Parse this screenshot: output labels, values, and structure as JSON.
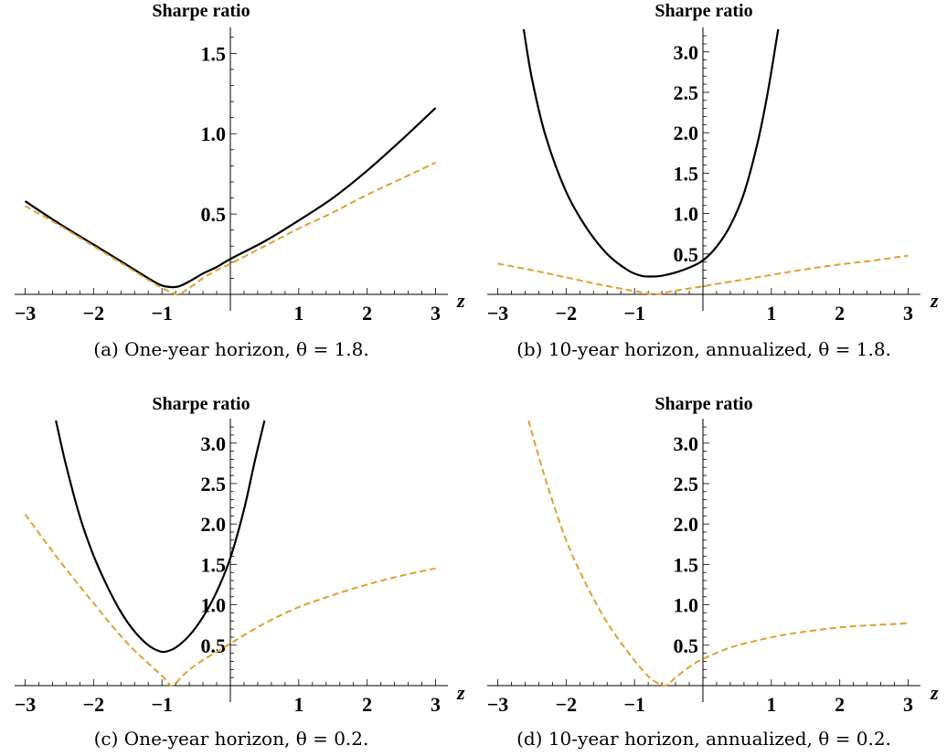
{
  "chart_data": [
    {
      "type": "line",
      "title": "Sharpe ratio",
      "xlabel": "z",
      "caption": "(a) One-year horizon, θ = 1.8.",
      "xlim": [
        -3.1,
        3.1
      ],
      "ylim": [
        0,
        1.65
      ],
      "xticks": [
        -3,
        -2,
        -1,
        1,
        2,
        3
      ],
      "xtick_labels": [
        "−3",
        "−2",
        "−1",
        "1",
        "2",
        "3"
      ],
      "yticks": [
        0.5,
        1.0,
        1.5
      ],
      "ytick_labels": [
        "0.5",
        "1.0",
        "1.5"
      ],
      "series": [
        {
          "color": "#000000",
          "style": "solid",
          "x": [
            -3,
            -2.5,
            -2,
            -1.5,
            -1.2,
            -1,
            -0.85,
            -0.75,
            -0.6,
            -0.4,
            -0.2,
            0,
            0.5,
            1,
            1.5,
            2,
            2.5,
            3
          ],
          "y": [
            0.58,
            0.44,
            0.31,
            0.18,
            0.1,
            0.055,
            0.045,
            0.05,
            0.08,
            0.13,
            0.17,
            0.22,
            0.33,
            0.46,
            0.6,
            0.77,
            0.96,
            1.16
          ]
        },
        {
          "color": "#E0A030",
          "style": "dashed",
          "x": [
            -3,
            -2.5,
            -2,
            -1.5,
            -1.2,
            -1,
            -0.85,
            -0.75,
            -0.6,
            -0.4,
            -0.2,
            0,
            0.5,
            1,
            1.5,
            2,
            2.5,
            3
          ],
          "y": [
            0.55,
            0.43,
            0.3,
            0.17,
            0.09,
            0.04,
            0.01,
            0.0,
            0.04,
            0.1,
            0.15,
            0.19,
            0.3,
            0.41,
            0.51,
            0.62,
            0.72,
            0.82
          ]
        }
      ]
    },
    {
      "type": "line",
      "title": "Sharpe ratio",
      "xlabel": "z",
      "caption": "(b) 10-year horizon, annualized, θ = 1.8.",
      "xlim": [
        -3.1,
        3.1
      ],
      "ylim": [
        0,
        3.28
      ],
      "xticks": [
        -3,
        -2,
        -1,
        1,
        2,
        3
      ],
      "xtick_labels": [
        "−3",
        "−2",
        "−1",
        "1",
        "2",
        "3"
      ],
      "yticks": [
        0.5,
        1.0,
        1.5,
        2.0,
        2.5,
        3.0
      ],
      "ytick_labels": [
        "0.5",
        "1.0",
        "1.5",
        "2.0",
        "2.5",
        "3.0"
      ],
      "series": [
        {
          "color": "#000000",
          "style": "solid",
          "x": [
            -2.62,
            -2.5,
            -2.3,
            -2,
            -1.7,
            -1.4,
            -1.1,
            -0.9,
            -0.75,
            -0.6,
            -0.4,
            -0.2,
            0,
            0.2,
            0.4,
            0.6,
            0.8,
            0.95,
            1.1
          ],
          "y": [
            3.28,
            2.67,
            1.96,
            1.27,
            0.82,
            0.5,
            0.3,
            0.23,
            0.22,
            0.23,
            0.27,
            0.33,
            0.42,
            0.59,
            0.85,
            1.25,
            1.88,
            2.51,
            3.28
          ]
        },
        {
          "color": "#E0A030",
          "style": "dashed",
          "x": [
            -3,
            -2.5,
            -2,
            -1.5,
            -1,
            -0.7,
            -0.5,
            -0.3,
            0,
            0.5,
            1,
            1.5,
            2,
            2.5,
            3
          ],
          "y": [
            0.38,
            0.3,
            0.21,
            0.12,
            0.04,
            0.0,
            0.03,
            0.06,
            0.1,
            0.17,
            0.24,
            0.31,
            0.37,
            0.42,
            0.48
          ]
        }
      ]
    },
    {
      "type": "line",
      "title": "Sharpe ratio",
      "xlabel": "z",
      "caption": "(c) One-year horizon, θ = 0.2.",
      "xlim": [
        -3.1,
        3.1
      ],
      "ylim": [
        0,
        3.28
      ],
      "xticks": [
        -3,
        -2,
        -1,
        1,
        2,
        3
      ],
      "xtick_labels": [
        "−3",
        "−2",
        "−1",
        "1",
        "2",
        "3"
      ],
      "yticks": [
        0.5,
        1.0,
        1.5,
        2.0,
        2.5,
        3.0
      ],
      "ytick_labels": [
        "0.5",
        "1.0",
        "1.5",
        "2.0",
        "2.5",
        "3.0"
      ],
      "series": [
        {
          "color": "#000000",
          "style": "solid",
          "x": [
            -2.55,
            -2.4,
            -2.2,
            -2,
            -1.8,
            -1.6,
            -1.4,
            -1.2,
            -1.05,
            -0.95,
            -0.8,
            -0.6,
            -0.4,
            -0.2,
            0,
            0.2,
            0.35,
            0.5
          ],
          "y": [
            3.28,
            2.72,
            2.09,
            1.61,
            1.23,
            0.91,
            0.67,
            0.5,
            0.43,
            0.42,
            0.47,
            0.62,
            0.85,
            1.16,
            1.58,
            2.18,
            2.75,
            3.28
          ]
        },
        {
          "color": "#E0A030",
          "style": "dashed",
          "x": [
            -3,
            -2.5,
            -2,
            -1.5,
            -1,
            -0.85,
            -0.7,
            -0.5,
            0,
            0.5,
            1,
            1.5,
            2,
            2.5,
            3
          ],
          "y": [
            2.12,
            1.55,
            1.02,
            0.52,
            0.12,
            0.0,
            0.12,
            0.26,
            0.52,
            0.77,
            0.97,
            1.12,
            1.25,
            1.36,
            1.45
          ]
        }
      ]
    },
    {
      "type": "line",
      "title": "Sharpe ratio",
      "xlabel": "z",
      "caption": "(d) 10-year horizon, annualized, θ = 0.2.",
      "xlim": [
        -3.1,
        3.1
      ],
      "ylim": [
        0,
        3.28
      ],
      "xticks": [
        -3,
        -2,
        -1,
        1,
        2,
        3
      ],
      "xtick_labels": [
        "−3",
        "−2",
        "−1",
        "1",
        "2",
        "3"
      ],
      "yticks": [
        0.5,
        1.0,
        1.5,
        2.0,
        2.5,
        3.0
      ],
      "ytick_labels": [
        "0.5",
        "1.0",
        "1.5",
        "2.0",
        "2.5",
        "3.0"
      ],
      "series": [
        {
          "color": "#E0A030",
          "style": "dashed",
          "x": [
            -2.55,
            -2.3,
            -2,
            -1.7,
            -1.4,
            -1.1,
            -0.85,
            -0.7,
            -0.55,
            -0.4,
            -0.2,
            0,
            0.4,
            0.8,
            1.2,
            1.6,
            2,
            2.5,
            3
          ],
          "y": [
            3.28,
            2.55,
            1.8,
            1.24,
            0.78,
            0.42,
            0.16,
            0.05,
            0.0,
            0.1,
            0.23,
            0.33,
            0.47,
            0.56,
            0.63,
            0.68,
            0.72,
            0.75,
            0.77
          ]
        }
      ]
    }
  ]
}
